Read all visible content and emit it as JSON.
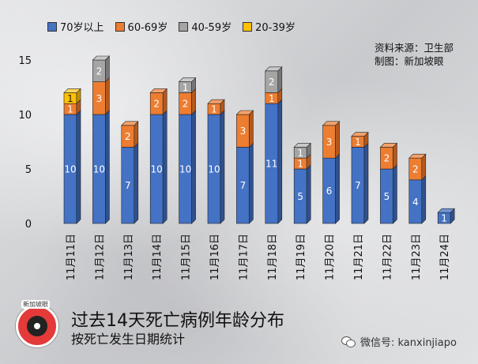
{
  "legend": [
    {
      "label": "70岁以上",
      "color": "#4472c4"
    },
    {
      "label": "60-69岁",
      "color": "#ed7d31"
    },
    {
      "label": "40-59岁",
      "color": "#a5a5a5"
    },
    {
      "label": "20-39岁",
      "color": "#ffc000"
    }
  ],
  "source": {
    "line1": "资料来源：卫生部",
    "line2": "制图：新加坡眼"
  },
  "logo_text": "新加坡眼",
  "title": "过去14天死亡病例年龄分布",
  "subtitle": "按死亡发生日期统计",
  "wechat": "微信号: kanxinjiapo",
  "icons": {
    "logo": "camera-eye-logo-icon",
    "wechat": "wechat-icon"
  },
  "chart_data": {
    "type": "bar",
    "stacked": true,
    "categories": [
      "11月11日",
      "11月12日",
      "11月13日",
      "11月14日",
      "11月15日",
      "11月16日",
      "11月17日",
      "11月18日",
      "11月19日",
      "11月20日",
      "11月21日",
      "11月22日",
      "11月23日",
      "11月24日"
    ],
    "series": [
      {
        "name": "70岁以上",
        "color": "#4472c4",
        "top": "#6f95d6",
        "side": "#2f528f",
        "values": [
          10,
          10,
          7,
          10,
          10,
          10,
          7,
          11,
          5,
          6,
          7,
          5,
          4,
          1
        ]
      },
      {
        "name": "60-69岁",
        "color": "#ed7d31",
        "top": "#f4a26b",
        "side": "#b5591c",
        "values": [
          1,
          3,
          2,
          2,
          2,
          1,
          3,
          1,
          1,
          3,
          1,
          2,
          2,
          0
        ]
      },
      {
        "name": "40-59岁",
        "color": "#a5a5a5",
        "top": "#c8c8c8",
        "side": "#777777",
        "values": [
          0,
          2,
          0,
          0,
          1,
          0,
          0,
          2,
          1,
          0,
          0,
          0,
          0,
          0
        ]
      },
      {
        "name": "20-39岁",
        "color": "#ffc000",
        "top": "#ffd75a",
        "side": "#c49100",
        "values": [
          1,
          0,
          0,
          0,
          0,
          0,
          0,
          0,
          0,
          0,
          0,
          0,
          0,
          0
        ]
      }
    ],
    "y_ticks": [
      0,
      5,
      10,
      15
    ],
    "ylim": [
      0,
      15
    ]
  }
}
